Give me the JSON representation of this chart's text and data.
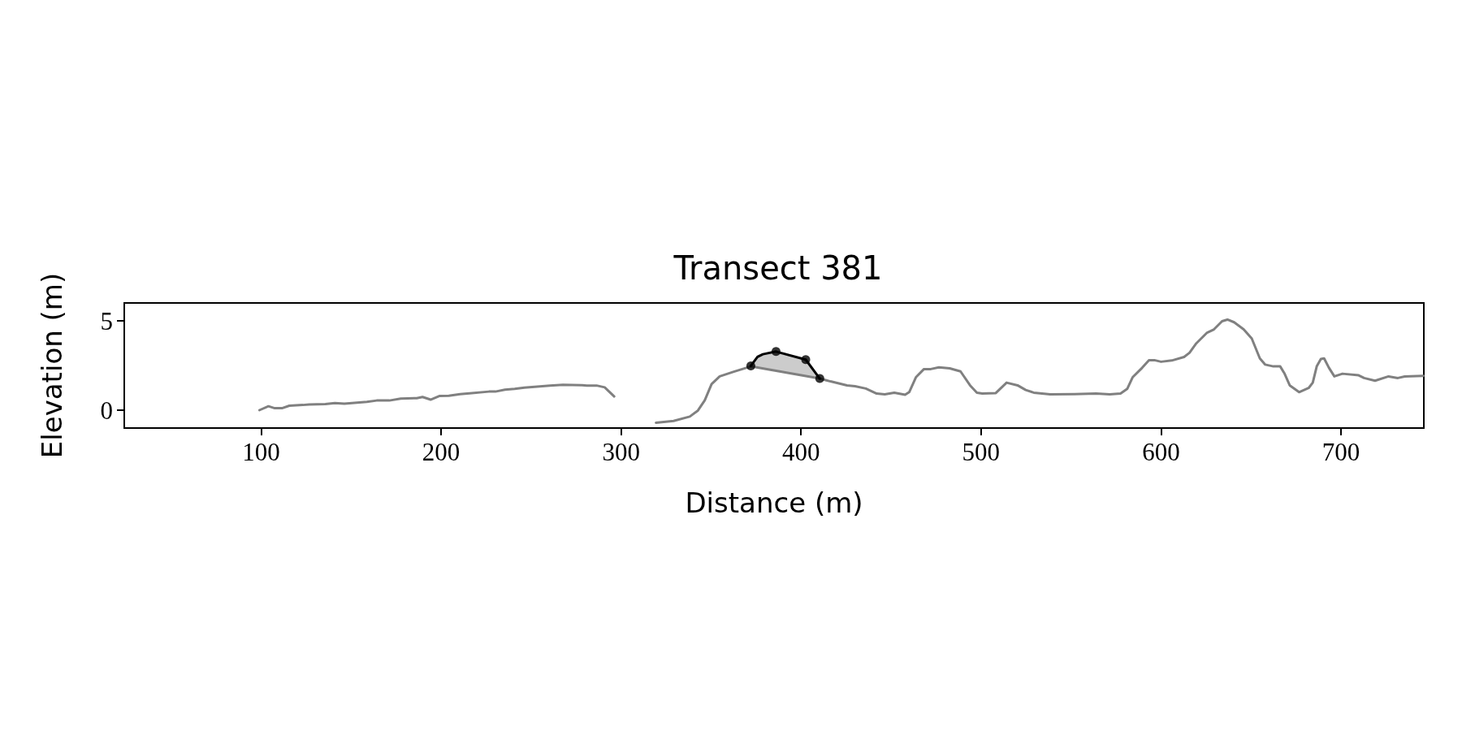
{
  "chart_data": {
    "type": "line",
    "title": "Transect 381",
    "xlabel": "Distance (m)",
    "ylabel": "Elevation (m)",
    "xlim": [
      24,
      746
    ],
    "xticks": [
      100,
      200,
      300,
      400,
      500,
      600,
      700
    ],
    "ylim": [
      -1,
      6
    ],
    "yticks": [
      0,
      5
    ],
    "series": [
      {
        "color": "#808080",
        "marker": "none",
        "x": [
          99.1,
          104.1,
          107.6,
          111.6,
          115.7,
          123.2,
          126.7,
          135.7,
          141.0,
          146.3,
          158.8,
          164.2,
          171.3,
          177.6,
          186.5,
          189.7,
          194.2,
          199.0,
          204.3,
          210.6,
          215.9,
          226.6,
          230.2,
          235.5,
          240.9,
          246.3,
          260.5,
          267.7,
          278.4,
          281.0,
          286.4,
          290.9,
          296.2,
          308,
          319.4,
          329.2,
          338.2,
          342.7,
          346.5,
          350.3,
          354.8,
          362.3,
          372.1,
          410.4,
          416.4,
          425.5,
          430.0,
          436.0,
          442.0,
          446.5,
          451.8,
          457.8,
          460.1,
          463.8,
          468.3,
          472.1,
          476.6,
          482.6,
          488.6,
          493.9,
          497.7,
          500.7,
          508.2,
          514.2,
          520.3,
          524.8,
          529.3,
          538.4,
          551.9,
          563.9,
          571.5,
          577.5,
          581.2,
          584.2,
          589.5,
          593.3,
          596.3,
          600.0,
          606.0,
          612.8,
          615.8,
          619.6,
          625.6,
          629.4,
          633.9,
          636.9,
          640.6,
          645.9,
          650.4,
          654.9,
          657.9,
          662.4,
          666.2,
          668.5,
          671.5,
          676.7,
          682.0,
          684.3,
          686.5,
          688.8,
          690.6,
          693.3,
          696.3,
          700.8,
          709.8,
          712.8,
          718.9,
          726.4,
          731.6,
          735.4,
          745.7
        ],
        "values": [
          0.0,
          0.22,
          0.11,
          0.11,
          0.25,
          0.29,
          0.32,
          0.34,
          0.4,
          0.36,
          0.47,
          0.54,
          0.54,
          0.65,
          0.67,
          0.74,
          0.59,
          0.79,
          0.81,
          0.9,
          0.94,
          1.04,
          1.04,
          1.15,
          1.19,
          1.26,
          1.37,
          1.42,
          1.4,
          1.37,
          1.38,
          1.28,
          0.77,
          null,
          -0.7,
          -0.6,
          -0.36,
          -0.02,
          0.55,
          1.46,
          1.89,
          2.14,
          2.45,
          1.77,
          1.61,
          1.39,
          1.34,
          1.21,
          0.93,
          0.89,
          0.98,
          0.86,
          1.01,
          1.84,
          2.3,
          2.3,
          2.4,
          2.34,
          2.17,
          1.39,
          0.98,
          0.93,
          0.96,
          1.54,
          1.39,
          1.13,
          0.98,
          0.89,
          0.9,
          0.93,
          0.89,
          0.93,
          1.19,
          1.84,
          2.37,
          2.8,
          2.8,
          2.71,
          2.78,
          2.98,
          3.21,
          3.74,
          4.34,
          4.52,
          4.98,
          5.07,
          4.92,
          4.52,
          4.01,
          2.9,
          2.55,
          2.45,
          2.45,
          2.07,
          1.39,
          1.01,
          1.24,
          1.54,
          2.45,
          2.86,
          2.9,
          2.37,
          1.89,
          2.04,
          1.95,
          1.8,
          1.65,
          1.89,
          1.8,
          1.89,
          1.92
        ]
      },
      {
        "color": "#000000",
        "marker": "none",
        "x": [
          372.1,
          375.8,
          378.8,
          386.1,
          402.6,
          410.4
        ],
        "values": [
          2.48,
          2.98,
          3.13,
          3.28,
          2.83,
          1.77
        ],
        "lower": [
          2.48,
          2.41,
          2.36,
          2.22,
          1.91,
          1.77
        ],
        "upper": [
          2.48,
          2.98,
          3.13,
          3.28,
          2.83,
          1.77
        ]
      },
      {
        "type": "scatter",
        "color": "#000000",
        "marker": "circle",
        "x": [
          372.1,
          386.1,
          402.6,
          410.4
        ],
        "values": [
          2.48,
          3.28,
          2.83,
          1.77
        ]
      }
    ]
  }
}
